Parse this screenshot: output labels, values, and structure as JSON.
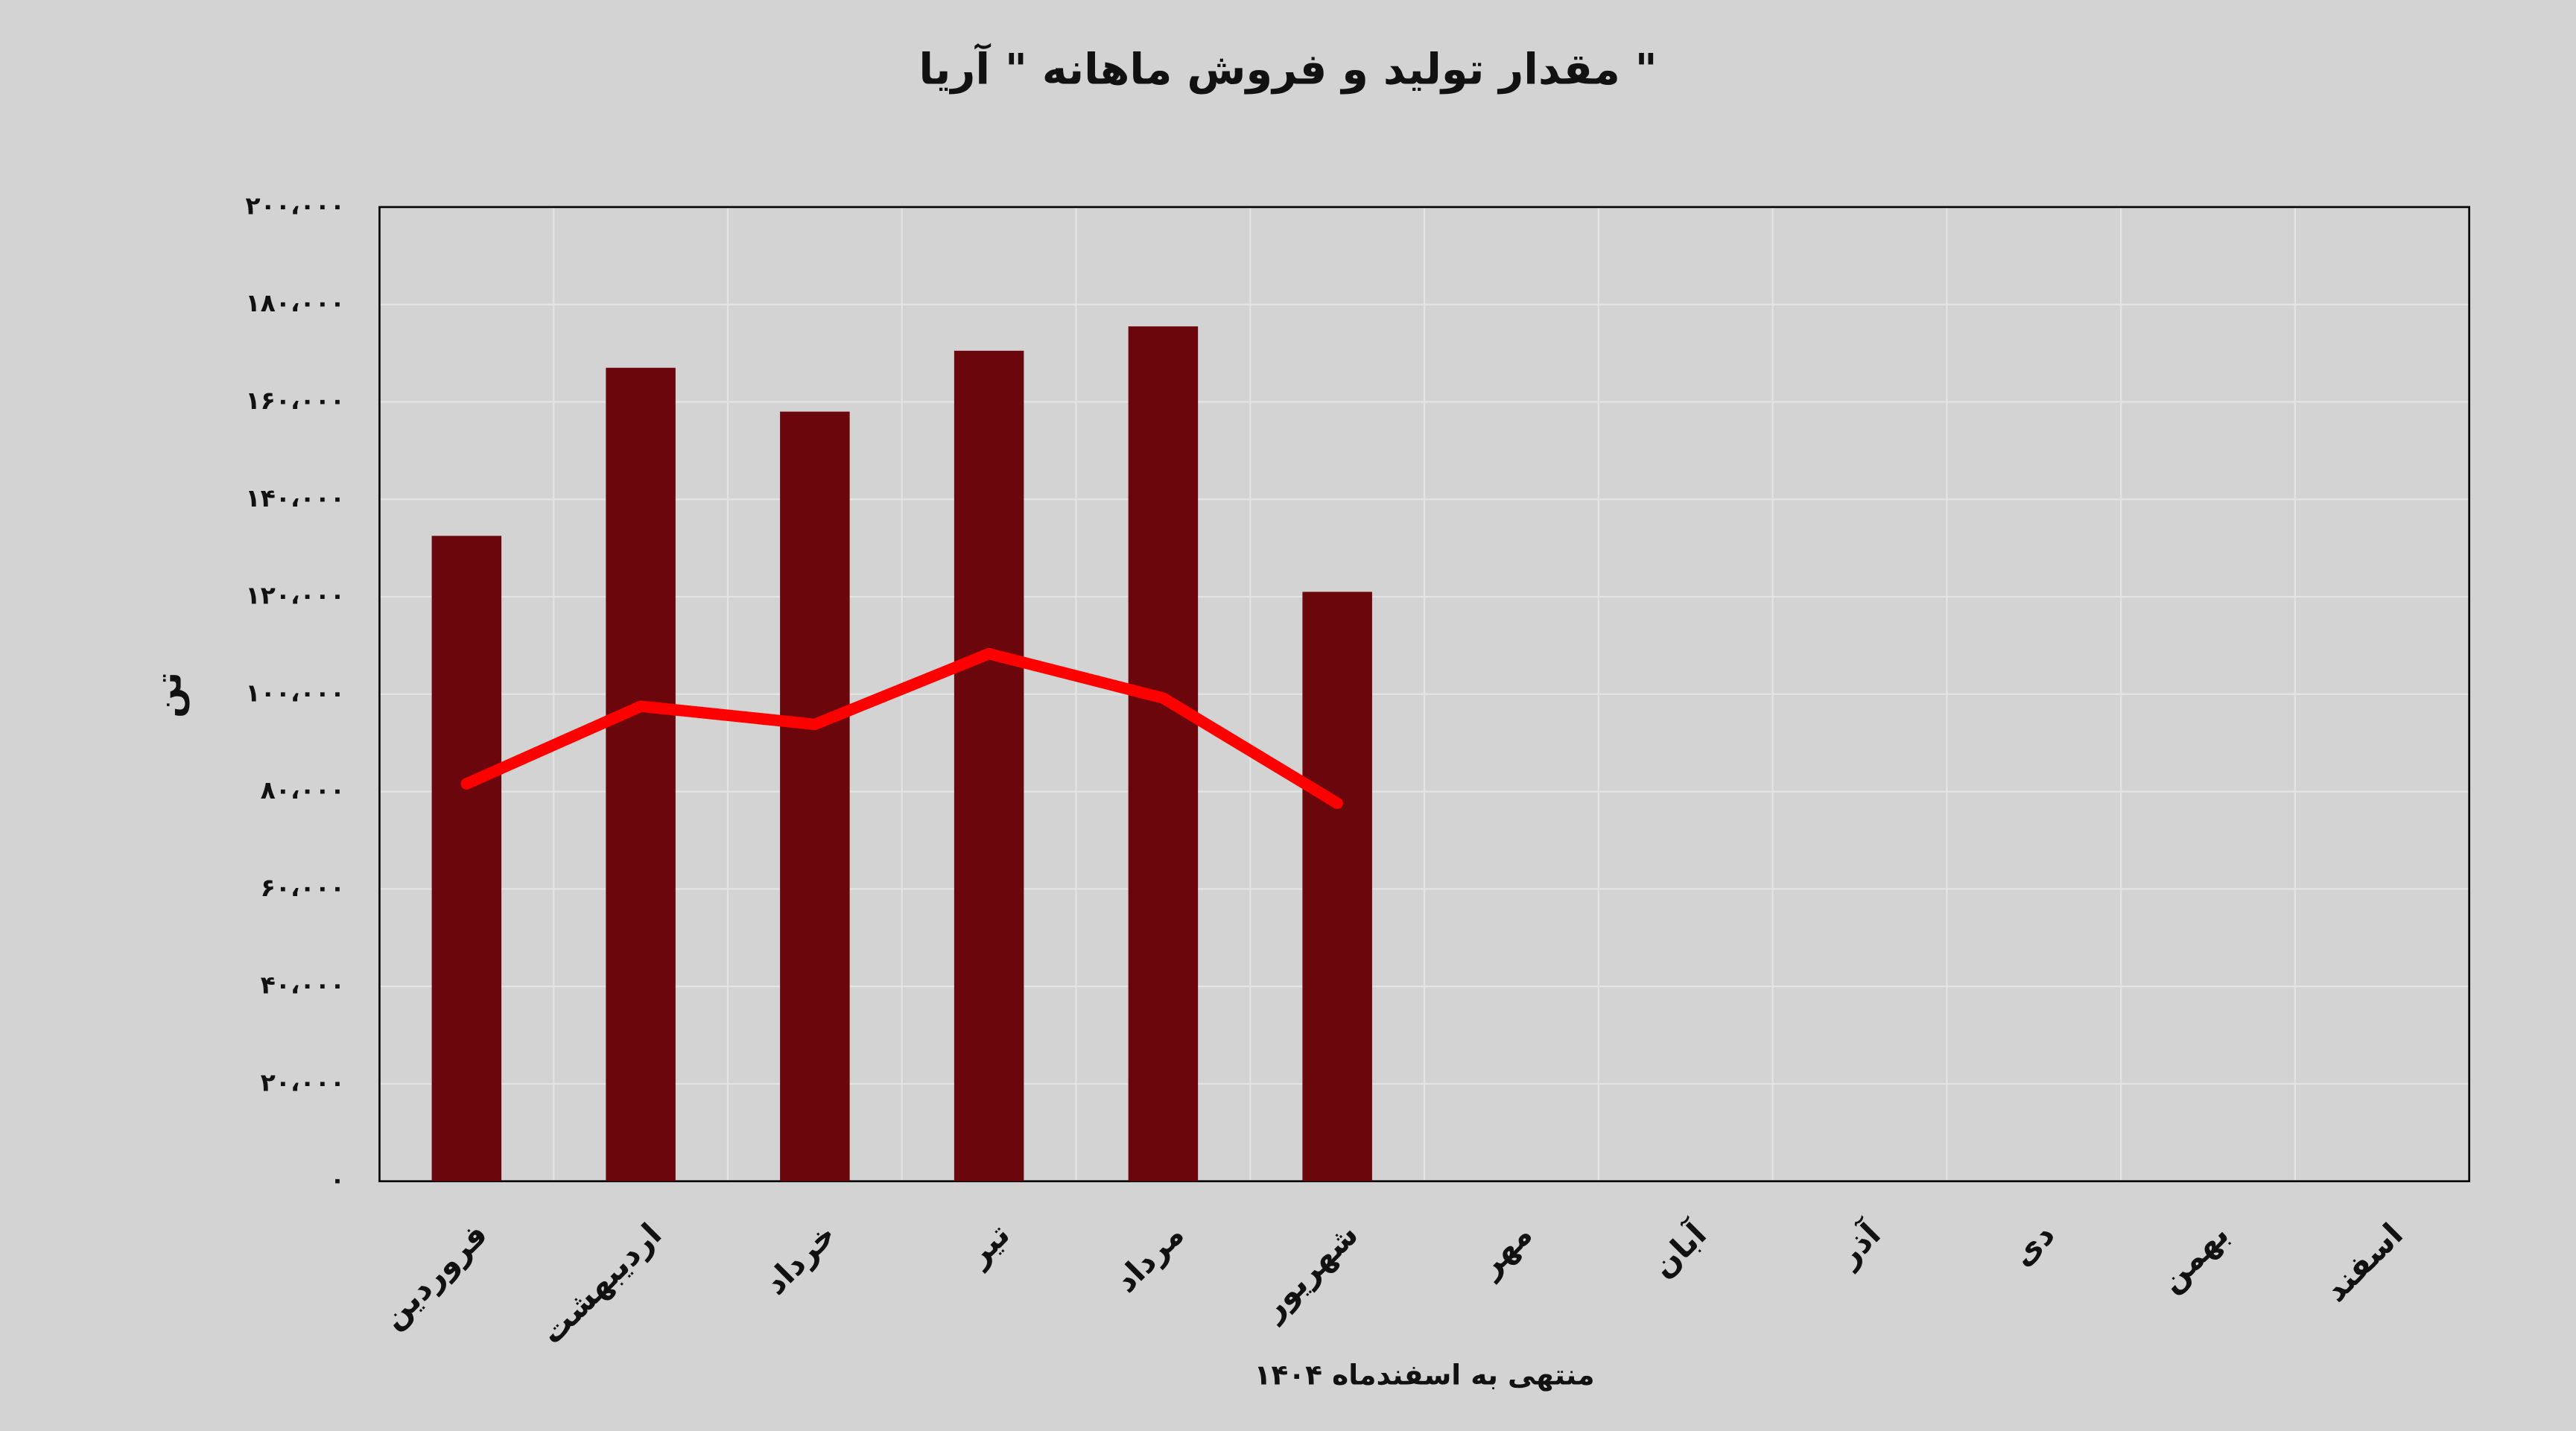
{
  "chart_data": {
    "type": "bar-line",
    "title": "مقدار تولید و فروش ماهانه \" آریا \"",
    "x_label": "منتهی به اسفندماه ۱۴۰۴",
    "y_label": "تن",
    "categories": [
      "فروردین",
      "اردیبهشت",
      "خرداد",
      "تیر",
      "مرداد",
      "شهریور",
      "مهر",
      "آبان",
      "آذر",
      "دی",
      "بهمن",
      "اسفند"
    ],
    "series": [
      {
        "type": "bar",
        "color": "#6b070c",
        "values": [
          132500,
          167000,
          158000,
          170500,
          175500,
          121000,
          null,
          null,
          null,
          null,
          null,
          null
        ]
      },
      {
        "type": "line",
        "color": "#ff0000",
        "values": [
          81600,
          97500,
          93800,
          108300,
          99200,
          77600,
          null,
          null,
          null,
          null,
          null,
          null
        ]
      }
    ],
    "ylim": [
      0,
      200000
    ],
    "yticks": [
      {
        "value": 0,
        "label": "۰"
      },
      {
        "value": 20000,
        "label": "۲۰،۰۰۰"
      },
      {
        "value": 40000,
        "label": "۴۰،۰۰۰"
      },
      {
        "value": 60000,
        "label": "۶۰،۰۰۰"
      },
      {
        "value": 80000,
        "label": "۸۰،۰۰۰"
      },
      {
        "value": 100000,
        "label": "۱۰۰،۰۰۰"
      },
      {
        "value": 120000,
        "label": "۱۲۰،۰۰۰"
      },
      {
        "value": 140000,
        "label": "۱۴۰،۰۰۰"
      },
      {
        "value": 160000,
        "label": "۱۶۰،۰۰۰"
      },
      {
        "value": 180000,
        "label": "۱۸۰،۰۰۰"
      },
      {
        "value": 200000,
        "label": "۲۰۰،۰۰۰"
      }
    ],
    "grid": true
  }
}
